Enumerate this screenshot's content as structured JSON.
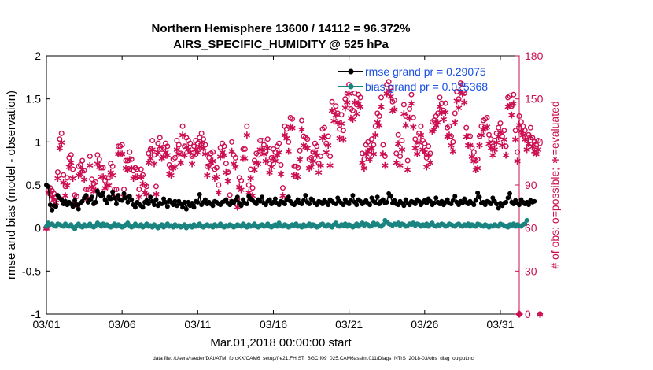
{
  "chart_data": {
    "type": "line",
    "title": "Northern Hemisphere 13600 / 14112 = 96.372%",
    "subtitle": "AIRS_SPECIFIC_HUMIDITY @ 525 hPa",
    "xlabel": "Mar.01,2018 00:00:00 start",
    "ylabel": "rmse and bias (model - observation)",
    "y2label": "# of obs: o=possible; ∗=evaluated",
    "footnote": "data file: /Users/raeder/DAI/ATM_forcXX/CAM6_setup/f.e21.FHIST_BGC.f09_025.CAM6assim.011/Diags_NTrS_2018-03/obs_diag_output.nc",
    "x_tick_labels": [
      "03/01",
      "03/06",
      "03/11",
      "03/16",
      "03/21",
      "03/26",
      "03/31"
    ],
    "x_tick_days": [
      1,
      6,
      11,
      16,
      21,
      26,
      31
    ],
    "xlim_days": [
      1,
      32.25
    ],
    "ylim": [
      -1,
      2
    ],
    "y_ticks": [
      "-1",
      "-0.5",
      "0",
      "0.5",
      "1",
      "1.5",
      "2"
    ],
    "y2lim": [
      0,
      180
    ],
    "y2_ticks": [
      "0",
      "30",
      "60",
      "90",
      "120",
      "150",
      "180"
    ],
    "legend": [
      "rmse grand pr = 0.29075",
      "bias grand pr = 0.025368"
    ],
    "series": [
      {
        "name": "rmse",
        "color": "#000000",
        "marker": "circle",
        "values": [
          0.5,
          0.48,
          0.27,
          0.21,
          0.26,
          0.25,
          0.38,
          0.35,
          0.33,
          0.28,
          0.31,
          0.27,
          0.3,
          0.28,
          0.25,
          0.32,
          0.27,
          0.22,
          0.29,
          0.31,
          0.35,
          0.38,
          0.3,
          0.33,
          0.36,
          0.28,
          0.3,
          0.43,
          0.39,
          0.37,
          0.41,
          0.33,
          0.29,
          0.36,
          0.34,
          0.42,
          0.35,
          0.28,
          0.38,
          0.33,
          0.32,
          0.4,
          0.35,
          0.3,
          0.37,
          0.33,
          0.27,
          0.24,
          0.3,
          0.28,
          0.26,
          0.24,
          0.3,
          0.32,
          0.28,
          0.36,
          0.31,
          0.27,
          0.33,
          0.26,
          0.29,
          0.28,
          0.34,
          0.3,
          0.25,
          0.32,
          0.3,
          0.27,
          0.31,
          0.26,
          0.31,
          0.28,
          0.24,
          0.3,
          0.22,
          0.3,
          0.26,
          0.29,
          0.24,
          0.31,
          0.3,
          0.39,
          0.27,
          0.3,
          0.33,
          0.28,
          0.3,
          0.28,
          0.26,
          0.31,
          0.3,
          0.28,
          0.27,
          0.3,
          0.31,
          0.33,
          0.29,
          0.27,
          0.31,
          0.29,
          0.32,
          0.36,
          0.29,
          0.26,
          0.33,
          0.29,
          0.28,
          0.37,
          0.34,
          0.32,
          0.3,
          0.28,
          0.33,
          0.31,
          0.36,
          0.29,
          0.27,
          0.31,
          0.33,
          0.28,
          0.3,
          0.34,
          0.29,
          0.27,
          0.31,
          0.3,
          0.28,
          0.33,
          0.36,
          0.31,
          0.28,
          0.27,
          0.3,
          0.33,
          0.29,
          0.28,
          0.32,
          0.38,
          0.3,
          0.28,
          0.34,
          0.32,
          0.29,
          0.27,
          0.31,
          0.3,
          0.28,
          0.32,
          0.3,
          0.27,
          0.33,
          0.31,
          0.29,
          0.28,
          0.35,
          0.31,
          0.29,
          0.27,
          0.33,
          0.3,
          0.28,
          0.32,
          0.38,
          0.3,
          0.27,
          0.33,
          0.31,
          0.28,
          0.3,
          0.32,
          0.29,
          0.27,
          0.35,
          0.31,
          0.29,
          0.36,
          0.28,
          0.31,
          0.33,
          0.29,
          0.3,
          0.4,
          0.37,
          0.29,
          0.32,
          0.28,
          0.27,
          0.31,
          0.29,
          0.26,
          0.33,
          0.29,
          0.27,
          0.31,
          0.3,
          0.28,
          0.33,
          0.31,
          0.27,
          0.3,
          0.32,
          0.29,
          0.34,
          0.31,
          0.27,
          0.29,
          0.35,
          0.3,
          0.28,
          0.31,
          0.27,
          0.3,
          0.33,
          0.29,
          0.28,
          0.32,
          0.37,
          0.3,
          0.27,
          0.31,
          0.29,
          0.34,
          0.3,
          0.28,
          0.31,
          0.29,
          0.27,
          0.32,
          0.41,
          0.36,
          0.29,
          0.3,
          0.27,
          0.31,
          0.3,
          0.28,
          0.35,
          0.31,
          0.28,
          0.23,
          0.29,
          0.26,
          0.29,
          0.3,
          0.35,
          0.4,
          0.3,
          0.28,
          0.32,
          0.29,
          0.27,
          0.33,
          0.3,
          0.28,
          0.3,
          0.27,
          0.32,
          0.3,
          0.31
        ]
      },
      {
        "name": "bias",
        "color": "#1a8580",
        "marker": "circle",
        "values": [
          0.02,
          0.06,
          0.04,
          0.05,
          0.03,
          0.02,
          0.05,
          0.04,
          0.03,
          0.02,
          0.05,
          0.03,
          0.02,
          0.04,
          0.01,
          -0.01,
          0.03,
          0.05,
          0.02,
          0.01,
          0.04,
          0.02,
          0.03,
          0.05,
          0.02,
          0.01,
          0.03,
          0.06,
          0.04,
          0.02,
          0.05,
          0.03,
          0.04,
          0.02,
          0.01,
          0.03,
          0.05,
          0.02,
          0.04,
          0.03,
          0.01,
          0.02,
          0.04,
          0.06,
          0.03,
          0.01,
          0.02,
          0.05,
          0.03,
          0.02,
          0.04,
          0.01,
          0.03,
          0.05,
          0.02,
          0.03,
          0.01,
          0.04,
          0.02,
          0.0,
          0.02,
          0.04,
          0.01,
          0.03,
          0.05,
          0.02,
          0.03,
          0.01,
          0.04,
          0.02,
          0.03,
          0.01,
          0.02,
          0.04,
          0.0,
          0.02,
          0.03,
          0.01,
          0.04,
          0.02,
          0.03,
          0.05,
          0.02,
          0.01,
          0.03,
          0.04,
          0.02,
          0.03,
          0.01,
          0.04,
          0.02,
          0.03,
          0.05,
          0.02,
          0.01,
          0.03,
          0.02,
          0.04,
          0.03,
          0.01,
          0.02,
          0.04,
          0.03,
          0.02,
          0.05,
          0.03,
          0.01,
          0.04,
          0.02,
          0.03,
          0.05,
          0.02,
          0.01,
          0.03,
          0.04,
          0.02,
          0.03,
          0.05,
          0.02,
          0.01,
          0.03,
          0.04,
          0.02,
          0.06,
          0.03,
          0.02,
          0.04,
          0.03,
          0.01,
          0.02,
          0.04,
          0.03,
          0.05,
          0.02,
          0.03,
          0.01,
          0.04,
          0.02,
          0.03,
          0.05,
          0.02,
          0.04,
          0.03,
          0.01,
          0.02,
          0.04,
          0.05,
          0.03,
          0.02,
          0.04,
          0.03,
          0.01,
          0.04,
          0.06,
          0.03,
          0.02,
          0.04,
          0.03,
          0.05,
          0.02,
          0.04,
          0.03,
          0.01,
          0.03,
          0.05,
          0.02,
          0.04,
          0.06,
          0.03,
          0.05,
          0.04,
          0.02,
          0.03,
          0.06,
          0.04,
          0.05,
          0.03,
          0.02,
          0.04,
          0.09,
          0.07,
          0.05,
          0.04,
          0.03,
          0.05,
          0.04,
          0.06,
          0.03,
          0.05,
          0.04,
          0.02,
          0.03,
          0.05,
          0.04,
          0.06,
          0.03,
          0.05,
          0.04,
          0.02,
          0.04,
          0.03,
          0.05,
          0.02,
          0.04,
          0.06,
          0.03,
          0.02,
          0.04,
          0.03,
          0.05,
          0.04,
          0.02,
          0.03,
          0.05,
          0.04,
          0.03,
          0.02,
          0.04,
          0.05,
          0.03,
          0.02,
          0.04,
          0.03,
          0.05,
          0.02,
          0.04,
          0.03,
          0.02,
          0.05,
          0.04,
          0.03,
          0.02,
          0.04,
          0.03,
          0.01,
          0.03,
          0.02,
          0.04,
          0.03,
          0.02,
          0.05,
          0.04,
          0.03,
          0.02,
          0.01,
          0.04,
          0.03,
          0.05,
          0.02,
          0.04,
          0.03,
          0.02,
          0.04,
          0.05,
          0.09
        ]
      },
      {
        "name": "obs possible",
        "axis": "right",
        "color": "#cc0f52",
        "marker": "o",
        "values": [
          60,
          87,
          88,
          86,
          84,
          81,
          99,
          122,
          126,
          97,
          89,
          95,
          109,
          111,
          101,
          83,
          82,
          103,
          104,
          107,
          100,
          87,
          87,
          110,
          94,
          91,
          92,
          111,
          108,
          102,
          102,
          93,
          95,
          95,
          105,
          103,
          87,
          87,
          117,
          117,
          118,
          87,
          107,
          107,
          113,
          108,
          100,
          102,
          101,
          87,
          101,
          97,
          90,
          89,
          112,
          115,
          121,
          111,
          89,
          119,
          123,
          115,
          116,
          119,
          117,
          104,
          102,
          108,
          109,
          121,
          118,
          112,
          131,
          117,
          123,
          121,
          119,
          110,
          117,
          121,
          119,
          123,
          126,
          122,
          118,
          103,
          109,
          112,
          113,
          101,
          102,
          90,
          116,
          119,
          117,
          105,
          99,
          83,
          120,
          111,
          109,
          80,
          95,
          93,
          115,
          115,
          131,
          90,
          101,
          88,
          107,
          112,
          111,
          121,
          121,
          118,
          113,
          122,
          105,
          109,
          115,
          113,
          117,
          119,
          104,
          88,
          131,
          129,
          120,
          137,
          136,
          103,
          103,
          102,
          114,
          135,
          124,
          123,
          122,
          108,
          109,
          113,
          119,
          117,
          105,
          110,
          129,
          130,
          119,
          124,
          110,
          148,
          141,
          145,
          140,
          129,
          139,
          128,
          150,
          154,
          160,
          143,
          142,
          154,
          146,
          153,
          151,
          112,
          108,
          118,
          120,
          114,
          122,
          118,
          131,
          140,
          138,
          151,
          118,
          110,
          160,
          162,
          158,
          148,
          149,
          112,
          125,
          110,
          121,
          146,
          138,
          107,
          143,
          153,
          137,
          122,
          118,
          126,
          131,
          121,
          119,
          109,
          117,
          112,
          134,
          135,
          138,
          140,
          151,
          147,
          142,
          147,
          130,
          131,
          124,
          120,
          140,
          155,
          150,
          161,
          160,
          154,
          130,
          124,
          124,
          116,
          113,
          107,
          108,
          124,
          131,
          135,
          136,
          137,
          125,
          122,
          117,
          121,
          126,
          130,
          133,
          124,
          128,
          117,
          151,
          152,
          145,
          153,
          128,
          113,
          138,
          134,
          131,
          128,
          121,
          125,
          130,
          123,
          120,
          118,
          121,
          0
        ]
      },
      {
        "name": "obs evaluated",
        "axis": "right",
        "color": "#cc0f52",
        "marker": "*",
        "values": [
          60,
          85,
          85,
          82,
          80,
          78,
          95,
          116,
          120,
          92,
          83,
          90,
          103,
          106,
          95,
          77,
          76,
          97,
          98,
          101,
          94,
          81,
          81,
          104,
          89,
          86,
          87,
          105,
          103,
          96,
          96,
          88,
          90,
          90,
          99,
          97,
          82,
          82,
          112,
          112,
          112,
          82,
          102,
          101,
          108,
          102,
          95,
          96,
          96,
          82,
          96,
          91,
          85,
          84,
          106,
          109,
          115,
          105,
          84,
          113,
          117,
          109,
          110,
          113,
          111,
          98,
          97,
          102,
          103,
          115,
          112,
          106,
          125,
          111,
          117,
          115,
          113,
          105,
          111,
          115,
          113,
          117,
          120,
          116,
          112,
          97,
          103,
          106,
          107,
          95,
          96,
          85,
          110,
          113,
          111,
          99,
          93,
          78,
          114,
          105,
          103,
          75,
          89,
          87,
          109,
          109,
          125,
          85,
          95,
          83,
          101,
          106,
          105,
          115,
          115,
          112,
          107,
          116,
          99,
          103,
          109,
          107,
          111,
          113,
          98,
          83,
          125,
          123,
          114,
          131,
          130,
          97,
          97,
          96,
          108,
          129,
          118,
          117,
          116,
          102,
          103,
          107,
          113,
          111,
          99,
          104,
          123,
          124,
          113,
          118,
          104,
          142,
          135,
          139,
          134,
          123,
          133,
          122,
          144,
          148,
          154,
          137,
          136,
          148,
          140,
          147,
          145,
          106,
          102,
          112,
          114,
          108,
          116,
          112,
          125,
          134,
          132,
          145,
          112,
          104,
          154,
          156,
          152,
          142,
          143,
          106,
          119,
          104,
          115,
          140,
          132,
          101,
          137,
          147,
          131,
          116,
          112,
          120,
          125,
          115,
          113,
          103,
          111,
          106,
          128,
          129,
          132,
          134,
          145,
          141,
          136,
          141,
          124,
          125,
          118,
          114,
          134,
          149,
          144,
          155,
          154,
          148,
          124,
          118,
          118,
          110,
          107,
          101,
          102,
          118,
          125,
          129,
          130,
          131,
          119,
          116,
          111,
          115,
          120,
          124,
          127,
          118,
          122,
          111,
          145,
          146,
          139,
          147,
          122,
          107,
          132,
          128,
          125,
          122,
          115,
          119,
          124,
          117,
          114,
          112,
          115,
          0
        ]
      }
    ]
  },
  "colors": {
    "rmse": "#000000",
    "bias": "#1a8580",
    "obs": "#cc0f52",
    "legend_text": "#1a4fe0",
    "zero_line": "#a6a6a6"
  }
}
